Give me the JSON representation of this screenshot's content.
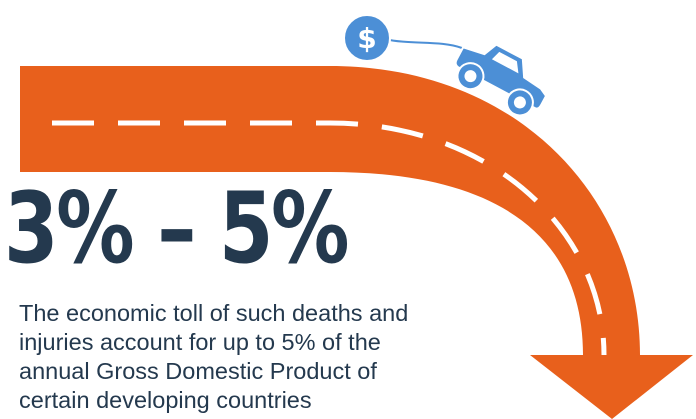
{
  "colors": {
    "road": "#e8601c",
    "road_marking": "#ffffff",
    "car": "#4c8fd6",
    "coin": "#4c8fd6",
    "text": "#24394e"
  },
  "icons": [
    "dollar-coin-icon",
    "car-icon",
    "curved-road-arrow"
  ],
  "coin_symbol": "$",
  "headline": "3% – 5%",
  "caption": "The economic toll of such deaths and injuries account for up to 5% of the annual Gross Domestic Product of certain developing countries"
}
